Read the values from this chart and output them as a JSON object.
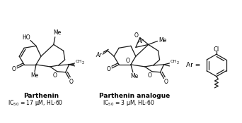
{
  "compound1_name": "Parthenin",
  "compound1_ic50": "IC$_{50}$ = 17 μM, HL-60",
  "compound2_name": "Parthenin analogue",
  "compound2_ic50": "IC$_{50}$ = 3 μM, HL-60",
  "ar_label": "Ar =",
  "cl_label": "Cl",
  "bg_color": "#ffffff",
  "line_color": "#1a1a1a",
  "text_color": "#000000",
  "lw": 0.9
}
